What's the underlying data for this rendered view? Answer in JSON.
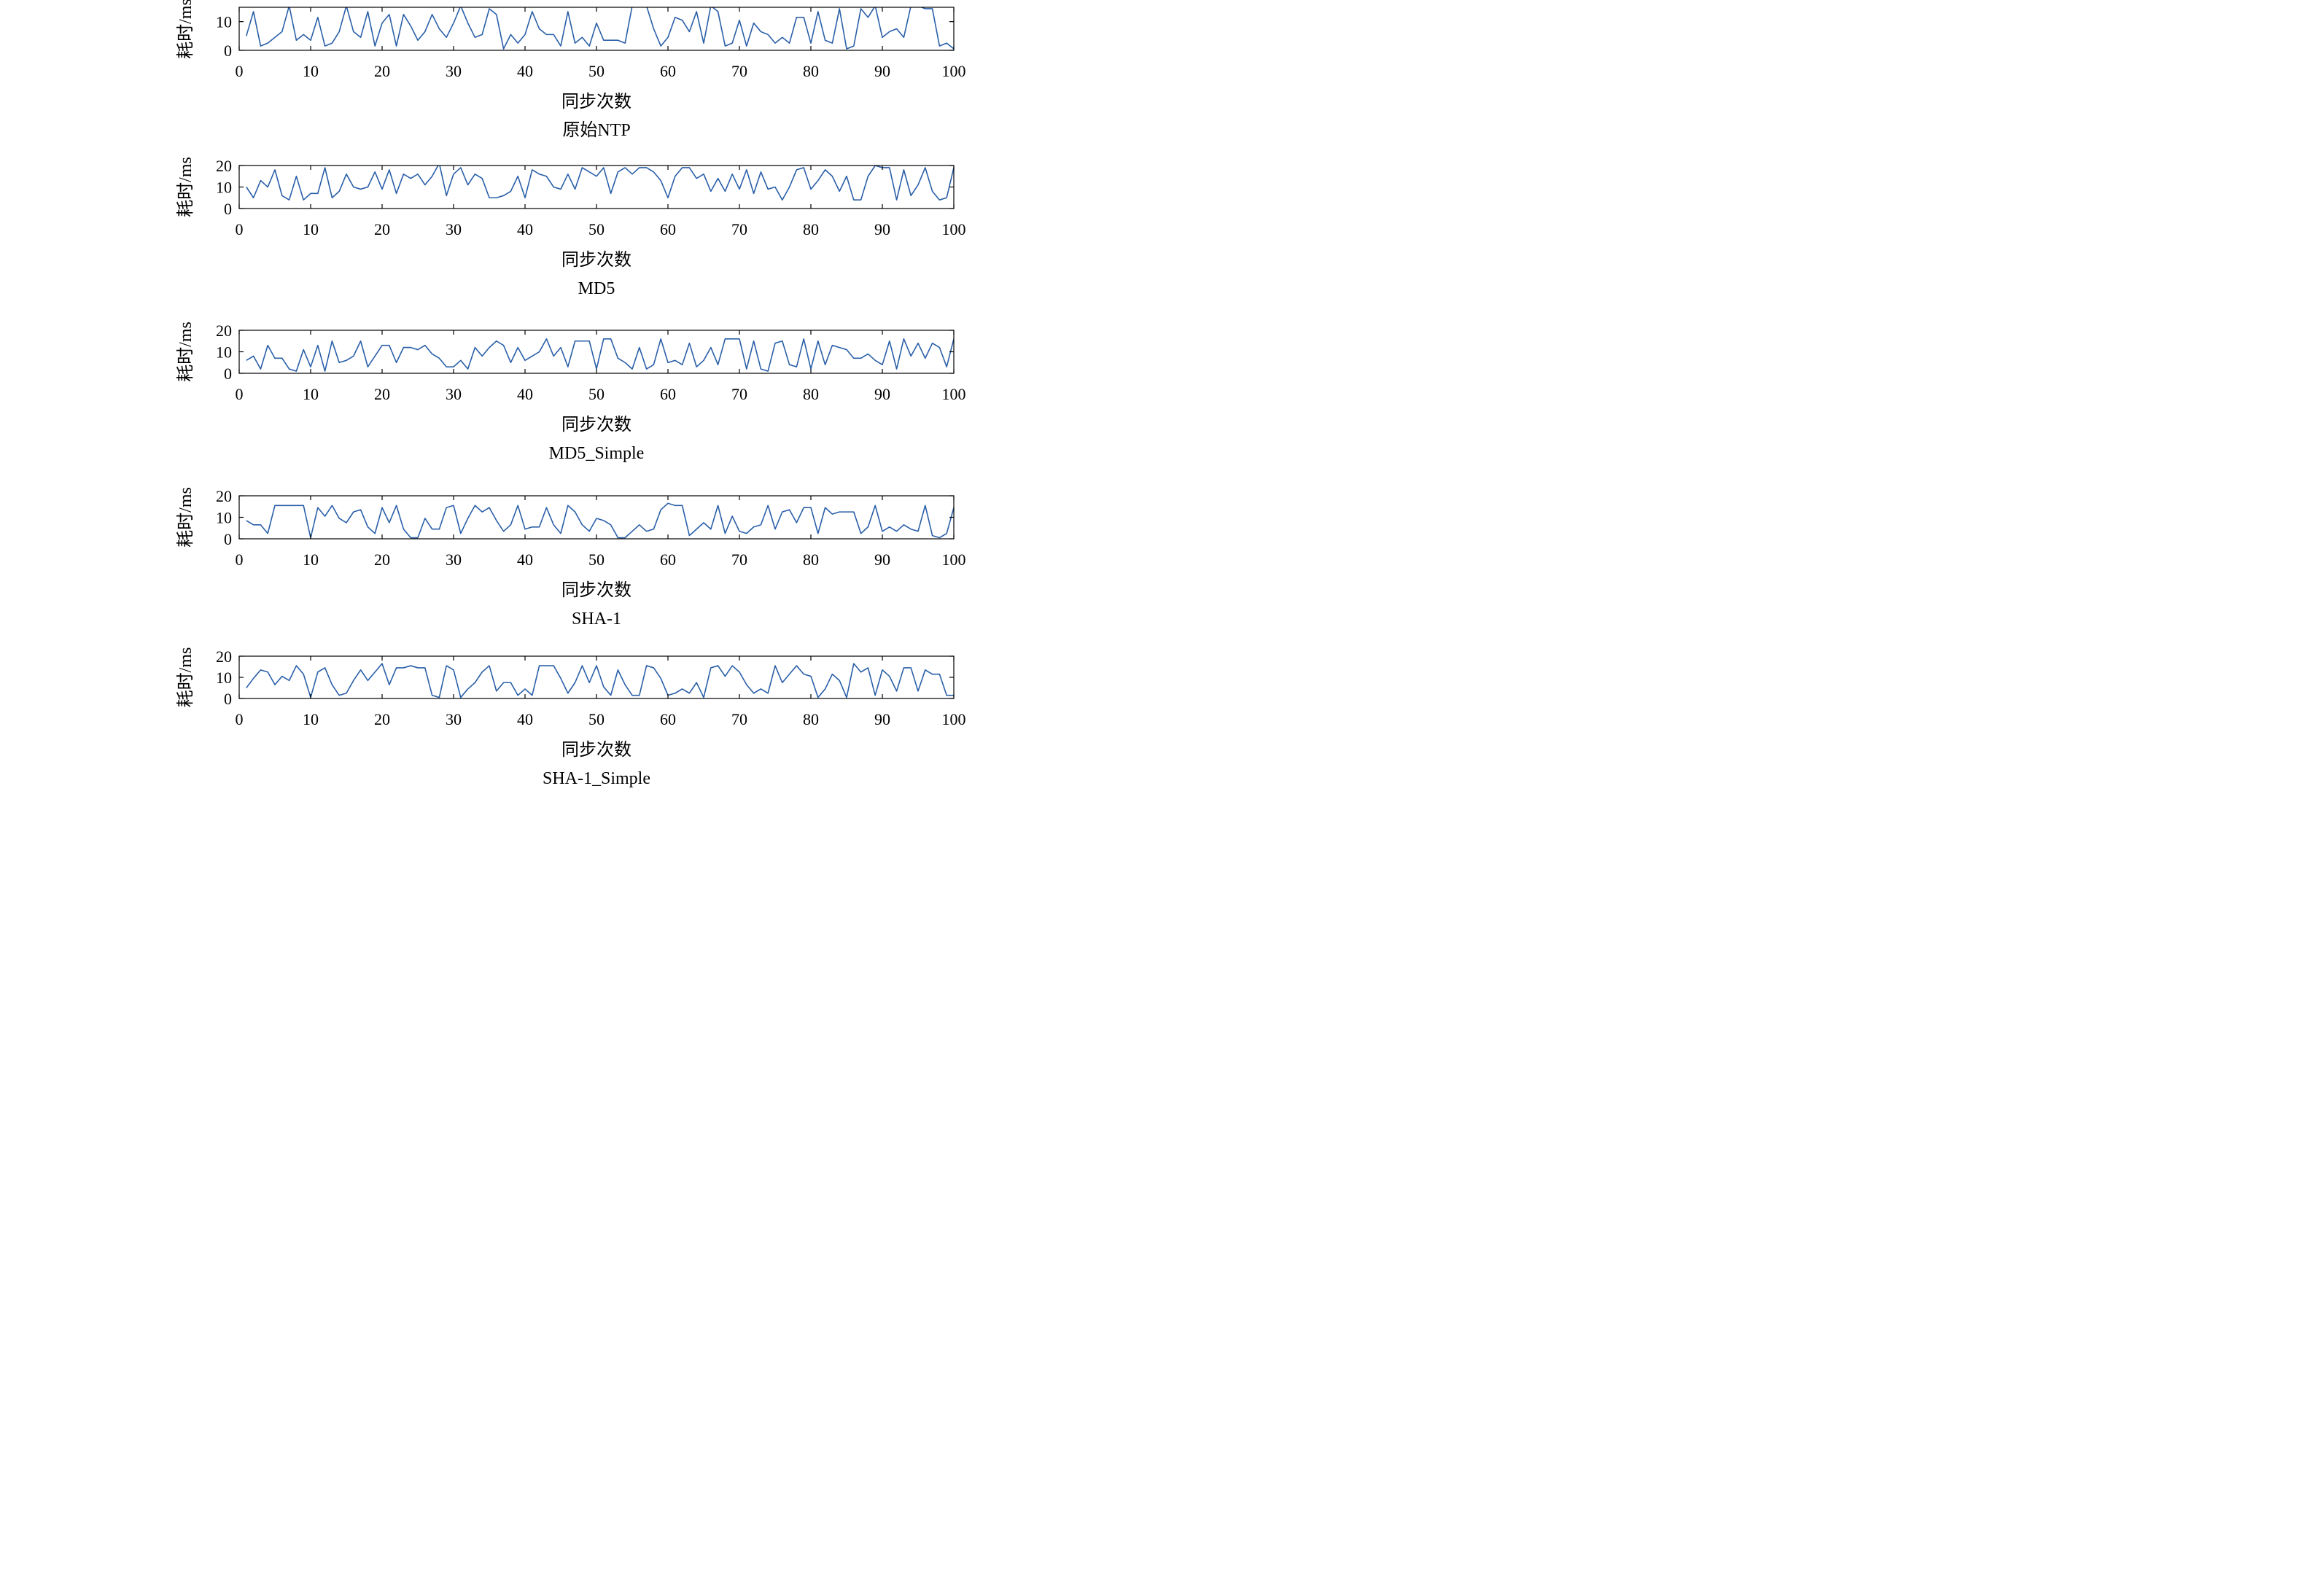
{
  "chart_data": [
    {
      "type": "line",
      "title": "原始NTP",
      "xlabel": "同步次数",
      "ylabel": "耗时/ms",
      "xlim": [
        0,
        100
      ],
      "ylim": [
        0,
        15
      ],
      "xticks": [
        0,
        10,
        20,
        30,
        40,
        50,
        60,
        70,
        80,
        90,
        100
      ],
      "yticks": [
        0,
        10
      ],
      "grid": false,
      "series": [
        {
          "color": "#2a5fa8",
          "x": [
            1,
            2,
            3,
            4,
            5,
            6,
            7,
            8,
            9,
            10,
            11,
            12,
            13,
            14,
            15,
            16,
            17,
            18,
            19,
            20,
            21,
            22,
            23,
            24,
            25,
            26,
            27,
            28,
            29,
            30,
            31,
            32,
            33,
            34,
            35,
            36,
            37,
            38,
            39,
            40,
            41,
            42,
            43,
            44,
            45,
            46,
            47,
            48,
            49,
            50,
            51,
            52,
            53,
            54,
            55,
            56,
            57,
            58,
            59,
            60,
            61,
            62,
            63,
            64,
            65,
            66,
            67,
            68,
            69,
            70,
            71,
            72,
            73,
            74,
            75,
            76,
            77,
            78,
            79,
            80,
            81,
            82,
            83,
            84,
            85,
            86,
            87,
            88,
            89,
            90,
            91,
            92,
            93,
            94,
            95,
            96,
            97,
            98,
            99,
            100
          ],
          "y": [
            5,
            13.5,
            1.5,
            2.5,
            4.5,
            6.5,
            15.5,
            3.5,
            5.5,
            3.5,
            11.5,
            1.5,
            2.5,
            6.5,
            15.5,
            6.5,
            4.5,
            13.5,
            1.5,
            9.5,
            12.5,
            1.5,
            12.5,
            8.5,
            3.5,
            6.5,
            12.5,
            7.5,
            4.5,
            9.5,
            15.5,
            9.5,
            4.5,
            5.5,
            14.5,
            12.5,
            0.5,
            5.5,
            2.5,
            5.5,
            13.5,
            7.5,
            5.5,
            5.5,
            1.5,
            13.5,
            2.5,
            4.5,
            1.5,
            9.5,
            3.5,
            3.5,
            3.5,
            2.5,
            15.5,
            15.5,
            15.5,
            7.5,
            1.5,
            4.5,
            11.5,
            10.5,
            6.5,
            13.5,
            2.5,
            15.5,
            13.5,
            1.5,
            2.5,
            10.5,
            1.5,
            9.5,
            6.5,
            5.5,
            2.5,
            4.5,
            2.5,
            11.5,
            11.5,
            2.5,
            13.5,
            3.5,
            2.5,
            14.5,
            0.5,
            1.5,
            14.5,
            11.5,
            15.5,
            4.5,
            6.5,
            7.5,
            4.5,
            15.5,
            15.5,
            14.5,
            14.5,
            1.5,
            2.5,
            0.5
          ]
        }
      ]
    },
    {
      "type": "line",
      "title": "MD5",
      "xlabel": "同步次数",
      "ylabel": "耗时/ms",
      "xlim": [
        0,
        100
      ],
      "ylim": [
        0,
        20
      ],
      "xticks": [
        0,
        10,
        20,
        30,
        40,
        50,
        60,
        70,
        80,
        90,
        100
      ],
      "yticks": [
        0,
        10,
        20
      ],
      "grid": false,
      "series": [
        {
          "color": "#2a5fa8",
          "x": [
            1,
            2,
            3,
            4,
            5,
            6,
            7,
            8,
            9,
            10,
            11,
            12,
            13,
            14,
            15,
            16,
            17,
            18,
            19,
            20,
            21,
            22,
            23,
            24,
            25,
            26,
            27,
            28,
            29,
            30,
            31,
            32,
            33,
            34,
            35,
            36,
            37,
            38,
            39,
            40,
            41,
            42,
            43,
            44,
            45,
            46,
            47,
            48,
            49,
            50,
            51,
            52,
            53,
            54,
            55,
            56,
            57,
            58,
            59,
            60,
            61,
            62,
            63,
            64,
            65,
            66,
            67,
            68,
            69,
            70,
            71,
            72,
            73,
            74,
            75,
            76,
            77,
            78,
            79,
            80,
            81,
            82,
            83,
            84,
            85,
            86,
            87,
            88,
            89,
            90,
            91,
            92,
            93,
            94,
            95,
            96,
            97,
            98,
            99,
            100
          ],
          "y": [
            10,
            5,
            13,
            10,
            18,
            6,
            4,
            15,
            4,
            7,
            7,
            19,
            5,
            8,
            16,
            10,
            9,
            10,
            17,
            9,
            18,
            7,
            16,
            14,
            16,
            11,
            15,
            21,
            6,
            16,
            19,
            11,
            16,
            14,
            5,
            5,
            6,
            8,
            15,
            5,
            18,
            16,
            15,
            10,
            9,
            16,
            9,
            19,
            17,
            15,
            19,
            7,
            17,
            19,
            16,
            19,
            19,
            17,
            13,
            5,
            15,
            19,
            19,
            14,
            16,
            8,
            14,
            8,
            16,
            9,
            18,
            7,
            17,
            9,
            10,
            4,
            10,
            18,
            19,
            9,
            13,
            18,
            15,
            8,
            15,
            4,
            4,
            15,
            20,
            19,
            19,
            4,
            18,
            6,
            11,
            19,
            8,
            4,
            5,
            19
          ]
        }
      ]
    },
    {
      "type": "line",
      "title": "MD5_Simple",
      "xlabel": "同步次数",
      "ylabel": "耗时/ms",
      "xlim": [
        0,
        100
      ],
      "ylim": [
        0,
        20
      ],
      "xticks": [
        0,
        10,
        20,
        30,
        40,
        50,
        60,
        70,
        80,
        90,
        100
      ],
      "yticks": [
        0,
        10,
        20
      ],
      "grid": false,
      "series": [
        {
          "color": "#2a5fa8",
          "x": [
            1,
            2,
            3,
            4,
            5,
            6,
            7,
            8,
            9,
            10,
            11,
            12,
            13,
            14,
            15,
            16,
            17,
            18,
            19,
            20,
            21,
            22,
            23,
            24,
            25,
            26,
            27,
            28,
            29,
            30,
            31,
            32,
            33,
            34,
            35,
            36,
            37,
            38,
            39,
            40,
            41,
            42,
            43,
            44,
            45,
            46,
            47,
            48,
            49,
            50,
            51,
            52,
            53,
            54,
            55,
            56,
            57,
            58,
            59,
            60,
            61,
            62,
            63,
            64,
            65,
            66,
            67,
            68,
            69,
            70,
            71,
            72,
            73,
            74,
            75,
            76,
            77,
            78,
            79,
            80,
            81,
            82,
            83,
            84,
            85,
            86,
            87,
            88,
            89,
            90,
            91,
            92,
            93,
            94,
            95,
            96,
            97,
            98,
            99,
            100
          ],
          "y": [
            6,
            8,
            2,
            13,
            7,
            7,
            2,
            1,
            11,
            3,
            13,
            1,
            15,
            5,
            6,
            8,
            15,
            3,
            8,
            13,
            13,
            5,
            12,
            12,
            11,
            13,
            9,
            7,
            3,
            3,
            6,
            2,
            12,
            8,
            12,
            15,
            13,
            5,
            12,
            6,
            8,
            10,
            16,
            8,
            12,
            3,
            15,
            15,
            15,
            2,
            16,
            16,
            7,
            5,
            2,
            12,
            2,
            4,
            16,
            5,
            6,
            4,
            14,
            3,
            6,
            12,
            4,
            16,
            16,
            16,
            2,
            15,
            2,
            1,
            14,
            15,
            4,
            3,
            16,
            2,
            15,
            4,
            13,
            12,
            11,
            7,
            7,
            9,
            6,
            4,
            15,
            2,
            16,
            8,
            14,
            7,
            14,
            12,
            3,
            16
          ]
        }
      ]
    },
    {
      "type": "line",
      "title": "SHA-1",
      "xlabel": "同步次数",
      "ylabel": "耗时/ms",
      "xlim": [
        0,
        100
      ],
      "ylim": [
        0,
        20
      ],
      "xticks": [
        0,
        10,
        20,
        30,
        40,
        50,
        60,
        70,
        80,
        90,
        100
      ],
      "yticks": [
        0,
        10,
        20
      ],
      "grid": false,
      "series": [
        {
          "color": "#2a5fa8",
          "x": [
            1,
            2,
            3,
            4,
            5,
            6,
            7,
            8,
            9,
            10,
            11,
            12,
            13,
            14,
            15,
            16,
            17,
            18,
            19,
            20,
            21,
            22,
            23,
            24,
            25,
            26,
            27,
            28,
            29,
            30,
            31,
            32,
            33,
            34,
            35,
            36,
            37,
            38,
            39,
            40,
            41,
            42,
            43,
            44,
            45,
            46,
            47,
            48,
            49,
            50,
            51,
            52,
            53,
            54,
            55,
            56,
            57,
            58,
            59,
            60,
            61,
            62,
            63,
            64,
            65,
            66,
            67,
            68,
            69,
            70,
            71,
            72,
            73,
            74,
            75,
            76,
            77,
            78,
            79,
            80,
            81,
            82,
            83,
            84,
            85,
            86,
            87,
            88,
            89,
            90,
            91,
            92,
            93,
            94,
            95,
            96,
            97,
            98,
            99,
            100
          ],
          "y": [
            8.5,
            6.5,
            6.5,
            2.5,
            15.5,
            15.5,
            15.5,
            15.5,
            15.5,
            0.5,
            14.5,
            10.5,
            15.5,
            9.5,
            7.5,
            12.5,
            13.5,
            5.5,
            2.5,
            14.5,
            7.5,
            15.5,
            4.5,
            0.5,
            0.5,
            9.5,
            4.5,
            4.5,
            14.5,
            15.5,
            2.5,
            9.5,
            15.5,
            12.5,
            14.5,
            8.5,
            3.5,
            6.5,
            15.5,
            4.5,
            5.5,
            5.5,
            14.5,
            6.5,
            2.5,
            15.5,
            12.5,
            6.5,
            3.5,
            9.5,
            8.5,
            6.5,
            0.5,
            0.5,
            3.5,
            6.5,
            3.5,
            4.5,
            13.5,
            16.5,
            15.5,
            15.5,
            1.5,
            4.5,
            7.5,
            4.5,
            15.5,
            2.5,
            10.5,
            3.5,
            2.5,
            5.5,
            6.5,
            15.5,
            4.5,
            12.5,
            13.5,
            7.5,
            14.5,
            14.5,
            2.5,
            14.5,
            11.5,
            12.5,
            12.5,
            12.5,
            2.5,
            5.5,
            15.5,
            3.5,
            5.5,
            3.5,
            6.5,
            4.5,
            3.5,
            15.5,
            1.5,
            0.5,
            2.5,
            14.5
          ]
        }
      ]
    },
    {
      "type": "line",
      "title": "SHA-1_Simple",
      "xlabel": "同步次数",
      "ylabel": "耗时/ms",
      "xlim": [
        0,
        100
      ],
      "ylim": [
        0,
        20
      ],
      "xticks": [
        0,
        10,
        20,
        30,
        40,
        50,
        60,
        70,
        80,
        90,
        100
      ],
      "yticks": [
        0,
        10,
        20
      ],
      "grid": false,
      "series": [
        {
          "color": "#2a5fa8",
          "x": [
            1,
            2,
            3,
            4,
            5,
            6,
            7,
            8,
            9,
            10,
            11,
            12,
            13,
            14,
            15,
            16,
            17,
            18,
            19,
            20,
            21,
            22,
            23,
            24,
            25,
            26,
            27,
            28,
            29,
            30,
            31,
            32,
            33,
            34,
            35,
            36,
            37,
            38,
            39,
            40,
            41,
            42,
            43,
            44,
            45,
            46,
            47,
            48,
            49,
            50,
            51,
            52,
            53,
            54,
            55,
            56,
            57,
            58,
            59,
            60,
            61,
            62,
            63,
            64,
            65,
            66,
            67,
            68,
            69,
            70,
            71,
            72,
            73,
            74,
            75,
            76,
            77,
            78,
            79,
            80,
            81,
            82,
            83,
            84,
            85,
            86,
            87,
            88,
            89,
            90,
            91,
            92,
            93,
            94,
            95,
            96,
            97,
            98,
            99,
            100
          ],
          "y": [
            5,
            9.5,
            13.5,
            12.5,
            6.5,
            10.5,
            8.5,
            15.5,
            11.5,
            0.5,
            12.5,
            14.5,
            6.5,
            1.5,
            2.5,
            8.5,
            13.5,
            8.5,
            12.5,
            16.5,
            6.5,
            14.5,
            14.5,
            15.5,
            14.5,
            14.5,
            1.5,
            0.5,
            15.5,
            13.5,
            0.5,
            4.5,
            7.5,
            12.5,
            15.5,
            3.5,
            7.5,
            7.5,
            1.5,
            4.5,
            1.5,
            15.5,
            15.5,
            15.5,
            9.5,
            2.5,
            7.5,
            15.5,
            7.5,
            15.5,
            5.5,
            1.5,
            13.5,
            6.5,
            1.5,
            1.5,
            15.5,
            14.5,
            9.5,
            1.5,
            2.5,
            4.5,
            2.5,
            7.5,
            0.5,
            14.5,
            15.5,
            10.5,
            15.5,
            12.5,
            6.5,
            2.5,
            4.5,
            2.5,
            15.5,
            7.5,
            11.5,
            15.5,
            11.5,
            10.5,
            0.5,
            4.5,
            11.5,
            8.5,
            0.5,
            16.5,
            12.5,
            14.5,
            1.5,
            13.5,
            10.5,
            3.5,
            14.5,
            14.5,
            3.5,
            13.5,
            11.5,
            11.5,
            1.5,
            1.5
          ]
        }
      ]
    }
  ]
}
